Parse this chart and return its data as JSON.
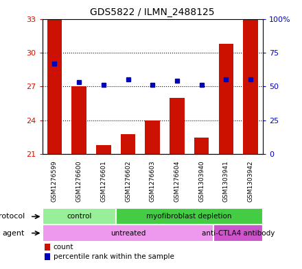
{
  "title": "GDS5822 / ILMN_2488125",
  "samples": [
    "GSM1276599",
    "GSM1276600",
    "GSM1276601",
    "GSM1276602",
    "GSM1276603",
    "GSM1276604",
    "GSM1303940",
    "GSM1303941",
    "GSM1303942"
  ],
  "counts": [
    33.0,
    27.0,
    21.8,
    22.8,
    24.0,
    26.0,
    22.5,
    30.8,
    33.0
  ],
  "percentiles": [
    67,
    53,
    51,
    55,
    51,
    54,
    51,
    55,
    55
  ],
  "ylim_left": [
    21,
    33
  ],
  "ylim_right": [
    0,
    100
  ],
  "yticks_left": [
    21,
    24,
    27,
    30,
    33
  ],
  "yticks_right": [
    0,
    25,
    50,
    75,
    100
  ],
  "ytick_labels_right": [
    "0",
    "25",
    "50",
    "75",
    "100%"
  ],
  "bar_color": "#cc1100",
  "dot_color": "#0000bb",
  "protocol_groups": [
    {
      "label": "control",
      "start": 0,
      "end": 2,
      "color": "#99ee99"
    },
    {
      "label": "myofibroblast depletion",
      "start": 3,
      "end": 8,
      "color": "#44cc44"
    }
  ],
  "agent_groups": [
    {
      "label": "untreated",
      "start": 0,
      "end": 6,
      "color": "#ee99ee"
    },
    {
      "label": "anti-CTLA4 antibody",
      "start": 7,
      "end": 8,
      "color": "#cc55cc"
    }
  ],
  "protocol_label": "protocol",
  "agent_label": "agent",
  "legend_count_label": "count",
  "legend_pct_label": "percentile rank within the sample",
  "sample_bg_color": "#cccccc",
  "plot_bg_color": "#ffffff",
  "bar_width": 0.6
}
